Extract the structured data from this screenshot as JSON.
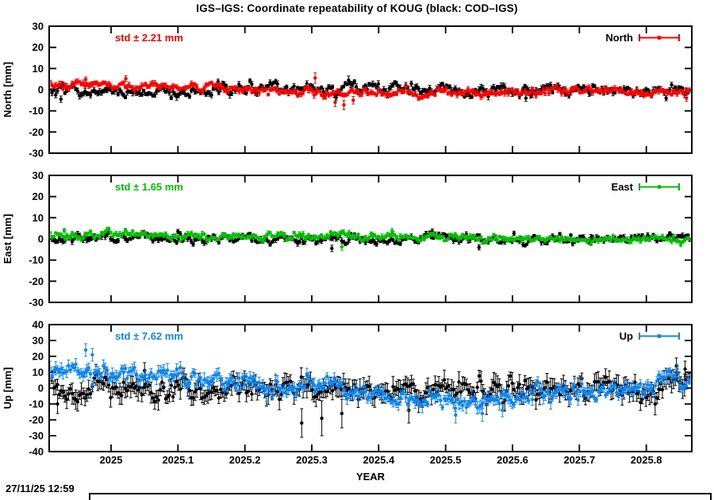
{
  "timestamp": "27/11/25 12:59",
  "chart_data": {
    "type": "scatter",
    "title": "IGS–IGS: Coordinate repeatability of KOUG (black: COD–IGS)",
    "xlabel": "YEAR",
    "x_range": [
      2024.9075,
      2025.868
    ],
    "point_step_years": 0.00274,
    "grid": false,
    "legend_position": "top-right-inside",
    "x_ticks": [
      {
        "v": 2025.0,
        "label": "2025"
      },
      {
        "v": 2025.1,
        "label": "2025.1"
      },
      {
        "v": 2025.2,
        "label": "2025.2"
      },
      {
        "v": 2025.3,
        "label": "2025.3"
      },
      {
        "v": 2025.4,
        "label": "2025.4"
      },
      {
        "v": 2025.5,
        "label": "2025.5"
      },
      {
        "v": 2025.6,
        "label": "2025.6"
      },
      {
        "v": 2025.7,
        "label": "2025.7"
      },
      {
        "v": 2025.8,
        "label": "2025.8"
      }
    ],
    "panels": [
      {
        "id": "north",
        "ylabel": "North [mm]",
        "ylim": [
          -30,
          30
        ],
        "yticks": [
          30,
          20,
          10,
          0,
          -10,
          -20,
          -30
        ],
        "std_text": "std ± 2.21 mm",
        "std_value_mm": 2.21,
        "legend_label": "North",
        "accent": "#ff0000",
        "series": [
          {
            "name": "COD–IGS",
            "color": "#000000",
            "seed": 101,
            "sigma": 1.5,
            "ar": 0.55,
            "err_range": [
              0.6,
              1.6
            ],
            "trend": [
              [
                2024.907,
                -0.8
              ],
              [
                2025.0,
                -0.8
              ],
              [
                2025.1,
                -0.3
              ],
              [
                2025.2,
                0.6
              ],
              [
                2025.32,
                1.0
              ],
              [
                2025.42,
                0.4
              ],
              [
                2025.55,
                -0.2
              ],
              [
                2025.7,
                0.0
              ],
              [
                2025.8,
                0.0
              ],
              [
                2025.868,
                0.3
              ]
            ],
            "outliers": [
              [
                2024.925,
                -4.5,
                1.5
              ],
              [
                2025.16,
                3.8,
                1.2
              ],
              [
                2025.355,
                4.5,
                2.0
              ],
              [
                2025.62,
                -4.0,
                1.5
              ]
            ]
          },
          {
            "name": "IGS–IGS",
            "color": "#ff0000",
            "seed": 202,
            "sigma": 1.1,
            "ar": 0.5,
            "err_range": [
              0.5,
              1.4
            ],
            "trend": [
              [
                2024.907,
                2.0
              ],
              [
                2025.0,
                2.0
              ],
              [
                2025.06,
                1.8
              ],
              [
                2025.12,
                1.0
              ],
              [
                2025.18,
                0.4
              ],
              [
                2025.24,
                -0.6
              ],
              [
                2025.3,
                -1.6
              ],
              [
                2025.38,
                -2.0
              ],
              [
                2025.5,
                -1.8
              ],
              [
                2025.6,
                -1.4
              ],
              [
                2025.7,
                -0.8
              ],
              [
                2025.8,
                -0.4
              ],
              [
                2025.868,
                -1.2
              ]
            ],
            "outliers": [
              [
                2024.962,
                4.8,
                1.2
              ],
              [
                2025.022,
                5.2,
                1.4
              ],
              [
                2025.305,
                5.5,
                2.5
              ],
              [
                2025.335,
                -6.0,
                2.0
              ],
              [
                2025.348,
                -7.2,
                2.2
              ],
              [
                2025.362,
                -5.0,
                1.8
              ],
              [
                2025.86,
                -4.0,
                1.5
              ]
            ]
          }
        ]
      },
      {
        "id": "east",
        "ylabel": "East [mm]",
        "ylim": [
          -30,
          30
        ],
        "yticks": [
          30,
          20,
          10,
          0,
          -10,
          -20,
          -30
        ],
        "std_text": "std ± 1.65 mm",
        "std_value_mm": 1.65,
        "legend_label": "East",
        "accent": "#00c000",
        "series": [
          {
            "name": "COD–IGS",
            "color": "#000000",
            "seed": 303,
            "sigma": 1.3,
            "ar": 0.5,
            "err_range": [
              0.5,
              1.4
            ],
            "trend": [
              [
                2024.907,
                0.6
              ],
              [
                2025.05,
                0.4
              ],
              [
                2025.2,
                0.2
              ],
              [
                2025.4,
                -0.2
              ],
              [
                2025.6,
                -0.2
              ],
              [
                2025.868,
                -0.2
              ]
            ],
            "outliers": [
              [
                2025.1,
                3.5,
                1.0
              ],
              [
                2025.33,
                -4.5,
                1.5
              ],
              [
                2025.48,
                3.5,
                1.2
              ],
              [
                2025.55,
                -4.0,
                1.2
              ]
            ]
          },
          {
            "name": "IGS–IGS",
            "color": "#00c000",
            "seed": 404,
            "sigma": 1.0,
            "ar": 0.5,
            "err_range": [
              0.4,
              1.2
            ],
            "trend": [
              [
                2024.907,
                2.0
              ],
              [
                2025.05,
                2.0
              ],
              [
                2025.15,
                1.6
              ],
              [
                2025.25,
                1.1
              ],
              [
                2025.4,
                0.6
              ],
              [
                2025.55,
                0.3
              ],
              [
                2025.7,
                0.0
              ],
              [
                2025.868,
                -0.5
              ]
            ],
            "outliers": [
              [
                2024.93,
                4.0,
                1.0
              ],
              [
                2025.345,
                -3.8,
                1.5
              ],
              [
                2025.42,
                3.8,
                1.2
              ]
            ]
          }
        ]
      },
      {
        "id": "up",
        "ylabel": "Up [mm]",
        "ylim": [
          -40,
          40
        ],
        "yticks": [
          40,
          30,
          20,
          10,
          0,
          -10,
          -20,
          -30,
          -40
        ],
        "std_text": "std ± 7.62 mm",
        "std_value_mm": 7.62,
        "legend_label": "Up",
        "accent": "#0d86f0",
        "series": [
          {
            "name": "COD–IGS",
            "color": "#000000",
            "seed": 505,
            "sigma": 4.0,
            "ar": 0.5,
            "err_range": [
              2.5,
              7.0
            ],
            "trend": [
              [
                2024.907,
                -1.0
              ],
              [
                2025.0,
                0.0
              ],
              [
                2025.1,
                0.5
              ],
              [
                2025.2,
                -1.0
              ],
              [
                2025.3,
                -2.0
              ],
              [
                2025.4,
                -1.5
              ],
              [
                2025.5,
                -1.0
              ],
              [
                2025.6,
                -1.5
              ],
              [
                2025.7,
                -1.0
              ],
              [
                2025.78,
                0.5
              ],
              [
                2025.84,
                2.0
              ],
              [
                2025.868,
                4.0
              ]
            ],
            "outliers": [
              [
                2024.92,
                -10,
                6
              ],
              [
                2025.05,
                11,
                5
              ],
              [
                2025.285,
                -22,
                9
              ],
              [
                2025.315,
                -19,
                11
              ],
              [
                2025.345,
                -16,
                9
              ],
              [
                2025.445,
                -14,
                8
              ],
              [
                2025.845,
                14,
                5
              ],
              [
                2025.858,
                12,
                5
              ]
            ]
          },
          {
            "name": "IGS–IGS",
            "color": "#0d86f0",
            "seed": 606,
            "sigma": 3.0,
            "ar": 0.55,
            "err_range": [
              1.5,
              4.5
            ],
            "trend": [
              [
                2024.907,
                13
              ],
              [
                2024.95,
                12
              ],
              [
                2025.0,
                10.5
              ],
              [
                2025.05,
                9
              ],
              [
                2025.1,
                7.5
              ],
              [
                2025.15,
                6
              ],
              [
                2025.2,
                4
              ],
              [
                2025.25,
                2
              ],
              [
                2025.3,
                0.5
              ],
              [
                2025.35,
                -1.5
              ],
              [
                2025.4,
                -3.5
              ],
              [
                2025.45,
                -5
              ],
              [
                2025.5,
                -6.5
              ],
              [
                2025.55,
                -8
              ],
              [
                2025.6,
                -6
              ],
              [
                2025.65,
                -4
              ],
              [
                2025.7,
                -2
              ],
              [
                2025.75,
                -0.5
              ],
              [
                2025.8,
                1.5
              ],
              [
                2025.85,
                3.5
              ],
              [
                2025.868,
                5
              ]
            ],
            "outliers": [
              [
                2024.962,
                24,
                4
              ],
              [
                2024.972,
                21,
                4
              ],
              [
                2025.515,
                -17,
                5
              ],
              [
                2025.555,
                -16,
                5
              ],
              [
                2025.585,
                -14,
                4
              ]
            ]
          }
        ]
      }
    ]
  }
}
